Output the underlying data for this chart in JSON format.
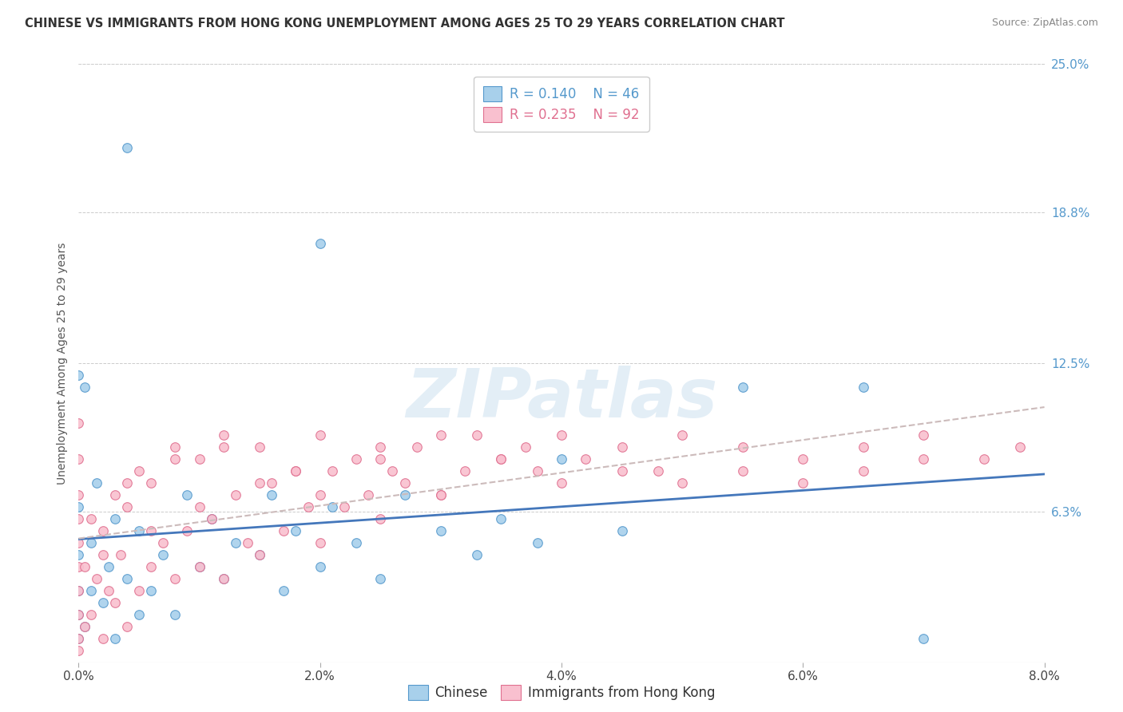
{
  "title": "CHINESE VS IMMIGRANTS FROM HONG KONG UNEMPLOYMENT AMONG AGES 25 TO 29 YEARS CORRELATION CHART",
  "source": "Source: ZipAtlas.com",
  "xlim": [
    0.0,
    8.0
  ],
  "ylim": [
    0.0,
    25.0
  ],
  "xticks": [
    0.0,
    2.0,
    4.0,
    6.0,
    8.0
  ],
  "xticklabels": [
    "0.0%",
    "2.0%",
    "4.0%",
    "6.0%",
    "8.0%"
  ],
  "yticks_right": [
    6.3,
    12.5,
    18.8,
    25.0
  ],
  "yticklabels_right": [
    "6.3%",
    "12.5%",
    "18.8%",
    "25.0%"
  ],
  "watermark": "ZIPatlas",
  "legend_r_chinese": "R = 0.140",
  "legend_n_chinese": "N = 46",
  "legend_r_hk": "R = 0.235",
  "legend_n_hk": "N = 92",
  "color_chinese_fill": "#a8d0eb",
  "color_chinese_edge": "#5599cc",
  "color_hk_fill": "#f9c0cf",
  "color_hk_edge": "#e07090",
  "color_line_chinese": "#4477bb",
  "color_line_hk": "#ccbbbb",
  "color_grid": "#cccccc",
  "color_title": "#333333",
  "color_right_axis": "#5599cc",
  "color_legend_text_chinese": "#5599cc",
  "color_legend_text_hk": "#e07090",
  "ylabel": "Unemployment Among Ages 25 to 29 years",
  "bottom_label_chinese": "Chinese",
  "bottom_label_hk": "Immigrants from Hong Kong",
  "seed": 12345,
  "n_chinese": 46,
  "n_hk": 92,
  "chinese_x": [
    0.0,
    0.0,
    0.0,
    0.0,
    0.0,
    0.05,
    0.1,
    0.1,
    0.15,
    0.2,
    0.25,
    0.3,
    0.3,
    0.4,
    0.5,
    0.5,
    0.6,
    0.7,
    0.8,
    0.9,
    1.0,
    1.1,
    1.2,
    1.3,
    1.5,
    1.6,
    1.7,
    1.8,
    2.0,
    2.1,
    2.3,
    2.5,
    2.7,
    3.0,
    3.3,
    3.5,
    3.8,
    4.0,
    4.5,
    5.5,
    6.5,
    7.0,
    0.05,
    0.4,
    2.0,
    0.0
  ],
  "chinese_y": [
    1.0,
    2.0,
    3.0,
    4.5,
    6.5,
    1.5,
    3.0,
    5.0,
    7.5,
    2.5,
    4.0,
    1.0,
    6.0,
    3.5,
    2.0,
    5.5,
    3.0,
    4.5,
    2.0,
    7.0,
    4.0,
    6.0,
    3.5,
    5.0,
    4.5,
    7.0,
    3.0,
    5.5,
    4.0,
    6.5,
    5.0,
    3.5,
    7.0,
    5.5,
    4.5,
    6.0,
    5.0,
    8.5,
    5.5,
    11.5,
    11.5,
    1.0,
    11.5,
    21.5,
    17.5,
    12.0
  ],
  "hk_x": [
    0.0,
    0.0,
    0.0,
    0.0,
    0.0,
    0.0,
    0.0,
    0.0,
    0.0,
    0.0,
    0.05,
    0.05,
    0.1,
    0.1,
    0.15,
    0.2,
    0.2,
    0.25,
    0.3,
    0.3,
    0.35,
    0.4,
    0.4,
    0.5,
    0.5,
    0.6,
    0.6,
    0.7,
    0.8,
    0.8,
    0.9,
    1.0,
    1.0,
    1.1,
    1.2,
    1.2,
    1.3,
    1.4,
    1.5,
    1.5,
    1.6,
    1.7,
    1.8,
    1.9,
    2.0,
    2.0,
    2.1,
    2.2,
    2.3,
    2.4,
    2.5,
    2.5,
    2.6,
    2.7,
    2.8,
    3.0,
    3.0,
    3.2,
    3.3,
    3.5,
    3.7,
    3.8,
    4.0,
    4.2,
    4.5,
    4.8,
    5.0,
    5.5,
    6.0,
    6.5,
    7.0,
    7.5,
    0.2,
    0.4,
    0.6,
    0.8,
    1.0,
    1.2,
    1.5,
    1.8,
    2.0,
    2.5,
    3.0,
    3.5,
    4.0,
    4.5,
    5.0,
    5.5,
    6.0,
    6.5,
    7.0,
    7.8
  ],
  "hk_y": [
    0.5,
    1.0,
    2.0,
    3.0,
    4.0,
    5.0,
    6.0,
    7.0,
    8.5,
    10.0,
    1.5,
    4.0,
    2.0,
    6.0,
    3.5,
    1.0,
    5.5,
    3.0,
    2.5,
    7.0,
    4.5,
    1.5,
    6.5,
    3.0,
    8.0,
    4.0,
    7.5,
    5.0,
    3.5,
    9.0,
    5.5,
    4.0,
    8.5,
    6.0,
    3.5,
    9.5,
    7.0,
    5.0,
    4.5,
    9.0,
    7.5,
    5.5,
    8.0,
    6.5,
    5.0,
    9.5,
    8.0,
    6.5,
    8.5,
    7.0,
    6.0,
    9.0,
    8.0,
    7.5,
    9.0,
    7.0,
    9.5,
    8.0,
    9.5,
    8.5,
    9.0,
    8.0,
    9.5,
    8.5,
    9.0,
    8.0,
    9.5,
    9.0,
    8.5,
    9.0,
    9.5,
    8.5,
    4.5,
    7.5,
    5.5,
    8.5,
    6.5,
    9.0,
    7.5,
    8.0,
    7.0,
    8.5,
    7.0,
    8.5,
    7.5,
    8.0,
    7.5,
    8.0,
    7.5,
    8.0,
    8.5,
    9.0
  ]
}
